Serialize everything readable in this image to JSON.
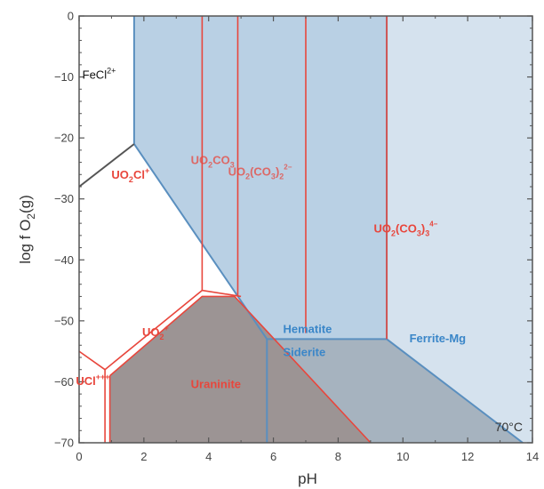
{
  "chart_data": {
    "type": "phase-diagram",
    "title": "",
    "xlabel": "pH",
    "ylabel_parts": {
      "main": "log f O",
      "sub": "2",
      "tail": "(g)"
    },
    "xlim": [
      0,
      14
    ],
    "ylim": [
      -70,
      0
    ],
    "x_ticks": [
      "0",
      "2",
      "4",
      "6",
      "8",
      "10",
      "12",
      "14"
    ],
    "y_ticks": [
      "0",
      "−10",
      "−20",
      "−30",
      "−40",
      "−50",
      "−60",
      "−70"
    ],
    "temperature": "70°C",
    "colors": {
      "axis": "#555555",
      "uranium_boundary": "#e8463c",
      "iron_boundary": "#5a8fbf",
      "hematite_fill": "#b9d0e4",
      "ferrite_fill": "#d5e2ee",
      "uraninite_fill": "#9c9494",
      "siderite_fill": "#a6b3bf",
      "fecl_boundary": "#555555"
    },
    "regions": {
      "hematite": [
        [
          1.7,
          0
        ],
        [
          9.5,
          0
        ],
        [
          9.5,
          -53
        ],
        [
          5.8,
          -53
        ],
        [
          1.7,
          -21
        ]
      ],
      "ferrite": [
        [
          9.5,
          0
        ],
        [
          14,
          0
        ],
        [
          14,
          -70
        ],
        [
          13.7,
          -70
        ],
        [
          9.5,
          -53
        ]
      ],
      "siderite": [
        [
          5.8,
          -53
        ],
        [
          9.5,
          -53
        ],
        [
          13.7,
          -70
        ],
        [
          5.8,
          -70
        ]
      ],
      "uraninite": [
        [
          0.95,
          -59
        ],
        [
          0.95,
          -70
        ],
        [
          9.0,
          -70
        ],
        [
          4.8,
          -46
        ],
        [
          3.8,
          -46
        ]
      ]
    },
    "iron_lines": [
      [
        [
          1.7,
          0
        ],
        [
          1.7,
          -21
        ],
        [
          5.8,
          -53
        ],
        [
          9.5,
          -53
        ],
        [
          13.7,
          -70
        ]
      ],
      [
        [
          9.5,
          0
        ],
        [
          9.5,
          -53
        ]
      ],
      [
        [
          5.8,
          -53
        ],
        [
          5.8,
          -70
        ]
      ]
    ],
    "fecl_line": [
      [
        0,
        -28
      ],
      [
        1.7,
        -21
      ]
    ],
    "uranium_lines": [
      [
        [
          0,
          -55
        ],
        [
          0.8,
          -58
        ],
        [
          3.8,
          -45
        ],
        [
          5.0,
          -46
        ]
      ],
      [
        [
          0.8,
          -58
        ],
        [
          0.8,
          -70
        ]
      ],
      [
        [
          0.95,
          -59
        ],
        [
          3.8,
          -46
        ],
        [
          4.8,
          -46
        ],
        [
          9.0,
          -70
        ]
      ],
      [
        [
          0.95,
          -59
        ],
        [
          0.95,
          -70
        ]
      ],
      [
        [
          3.8,
          0
        ],
        [
          3.8,
          -45
        ]
      ],
      [
        [
          4.9,
          0
        ],
        [
          4.9,
          -46
        ]
      ],
      [
        [
          7.0,
          0
        ],
        [
          7.0,
          -52
        ]
      ],
      [
        [
          9.5,
          -53
        ],
        [
          9.5,
          0
        ]
      ]
    ],
    "labels": {
      "fecl": {
        "main": "FeCl",
        "sup": "2+",
        "x": 0.1,
        "y": -10.3
      },
      "uo2cl": {
        "main": "UO",
        "sub": "2",
        "tail": "Cl",
        "sup": "+",
        "x": 1.0,
        "y": -26.7
      },
      "uo2co3": {
        "main": "UO",
        "sub": "2",
        "tail": "CO",
        "sub2": "3",
        "x": 3.45,
        "y": -24.3
      },
      "uo2co3_2": {
        "main": "UO",
        "sub": "2",
        "tail": "(CO",
        "sub2": "3",
        "tail2": ")",
        "sub3": "2",
        "sup": "2−",
        "x": 4.6,
        "y": -26.2
      },
      "uo2co3_3": {
        "main": "UO",
        "sub": "2",
        "tail": "(CO",
        "sub2": "3",
        "tail2": ")",
        "sub3": "3",
        "sup": "4−",
        "x": 9.1,
        "y": -35.5
      },
      "uo2plus": {
        "main": "UO",
        "sub": "2",
        "sup": "+",
        "x": 1.95,
        "y": -52.5
      },
      "ucl": {
        "main": "UCl",
        "sup": "+++",
        "x": -0.1,
        "y": -60.5
      },
      "uraninite": {
        "text": "Uraninite",
        "x": 3.45,
        "y": -61.0
      },
      "hematite": {
        "text": "Hematite",
        "x": 6.3,
        "y": -52.0
      },
      "siderite": {
        "text": "Siderite",
        "x": 6.3,
        "y": -55.8
      },
      "ferrite": {
        "text": "Ferrite-Mg",
        "x": 10.2,
        "y": -53.5
      }
    }
  }
}
